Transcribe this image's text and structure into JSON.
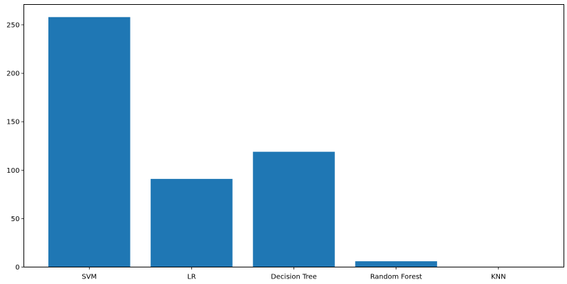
{
  "chart_data": {
    "type": "bar",
    "title": "",
    "xlabel": "",
    "ylabel": "",
    "categories": [
      "SVM",
      "LR",
      "Decision Tree",
      "Random Forest",
      "KNN"
    ],
    "values": [
      258,
      91,
      119,
      6,
      0
    ],
    "ylim": [
      0,
      271
    ],
    "yticks": [
      0,
      50,
      100,
      150,
      200,
      250
    ],
    "grid": false,
    "legend": "none",
    "bar_color": "#1f77b4"
  }
}
